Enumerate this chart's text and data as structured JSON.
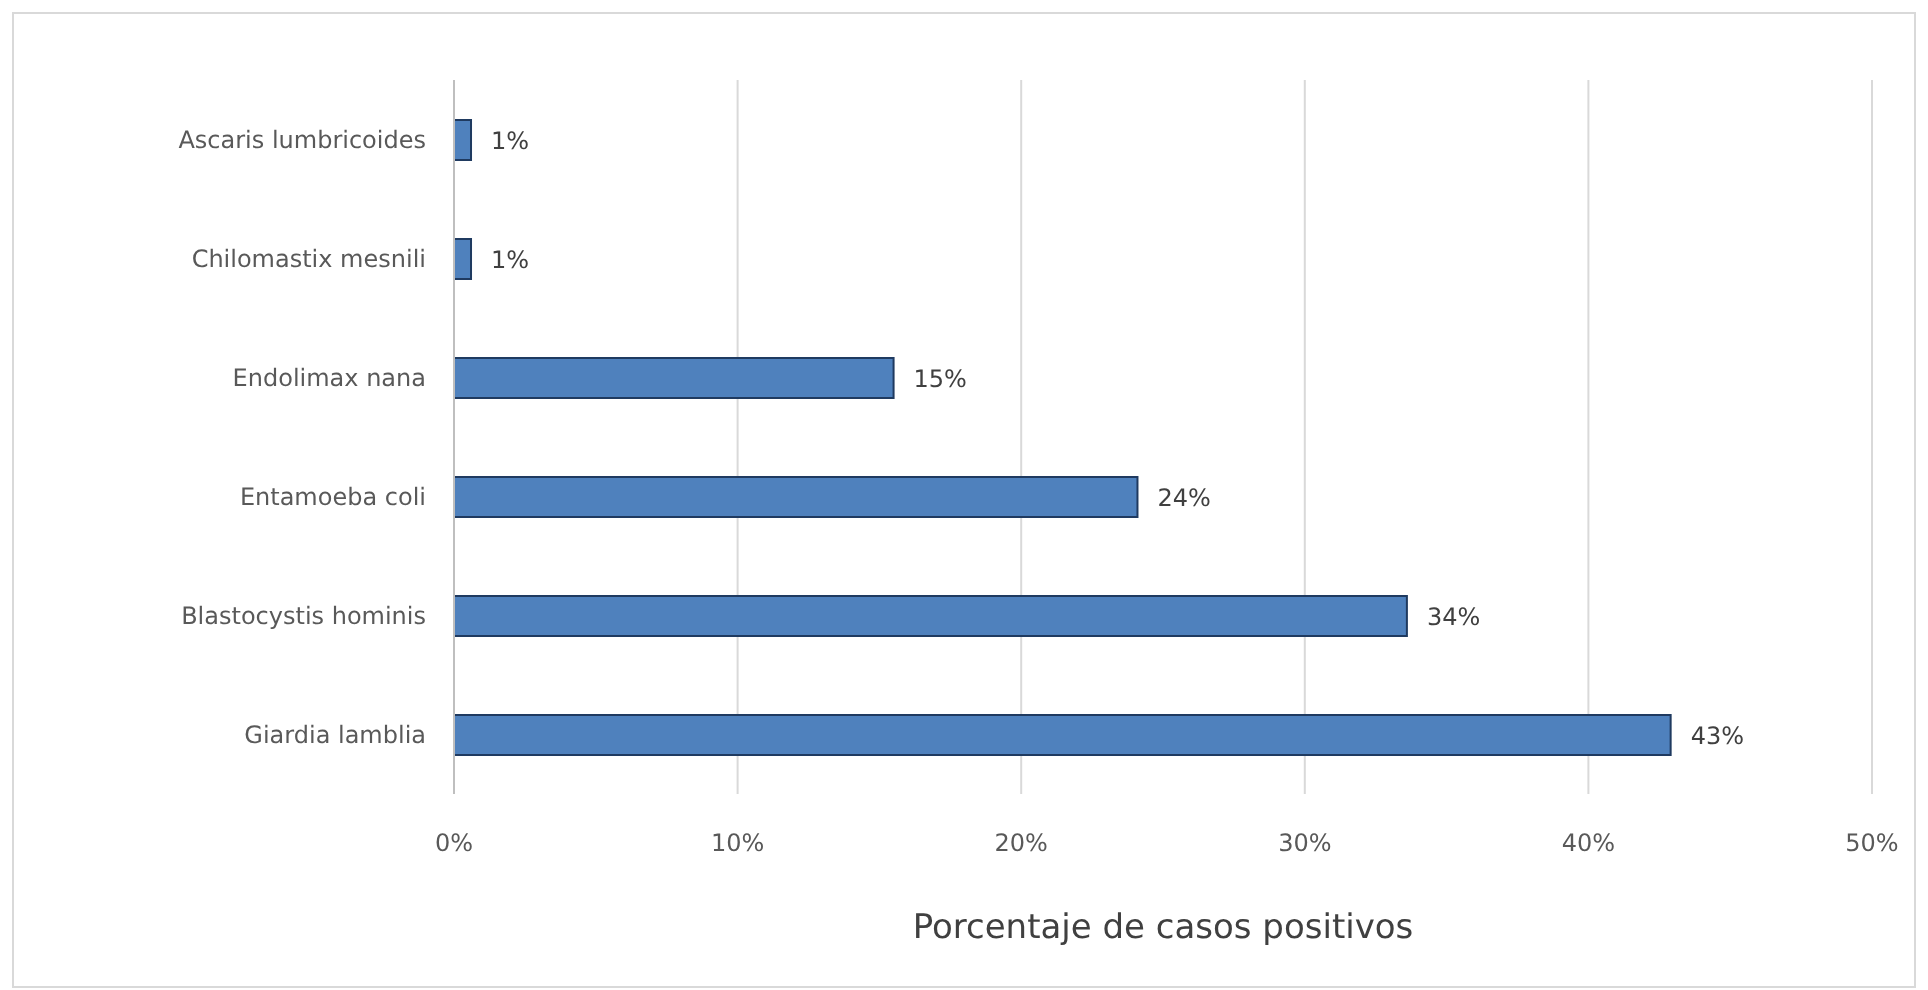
{
  "chart_data": {
    "type": "bar",
    "orientation": "horizontal",
    "xlabel": "Porcentaje de casos positivos",
    "categories": [
      "Ascaris lumbricoides",
      "Chilomastix  mesnili",
      "Endolimax nana",
      "Entamoeba coli",
      "Blastocystis hominis",
      "Giardia lamblia"
    ],
    "values": [
      0.6,
      0.6,
      15.5,
      24.1,
      33.6,
      42.9
    ],
    "value_labels": [
      "1%",
      "1%",
      "15%",
      "24%",
      "34%",
      "43%"
    ],
    "color": "#4f81bd",
    "xlim": [
      0,
      50
    ],
    "xticks": [
      {
        "value": 0,
        "label": "0%"
      },
      {
        "value": 10,
        "label": "10%"
      },
      {
        "value": 20,
        "label": "20%"
      },
      {
        "value": 30,
        "label": "30%"
      },
      {
        "value": 40,
        "label": "40%"
      },
      {
        "value": 50,
        "label": "50%"
      }
    ],
    "grid": "x",
    "legend": false
  }
}
